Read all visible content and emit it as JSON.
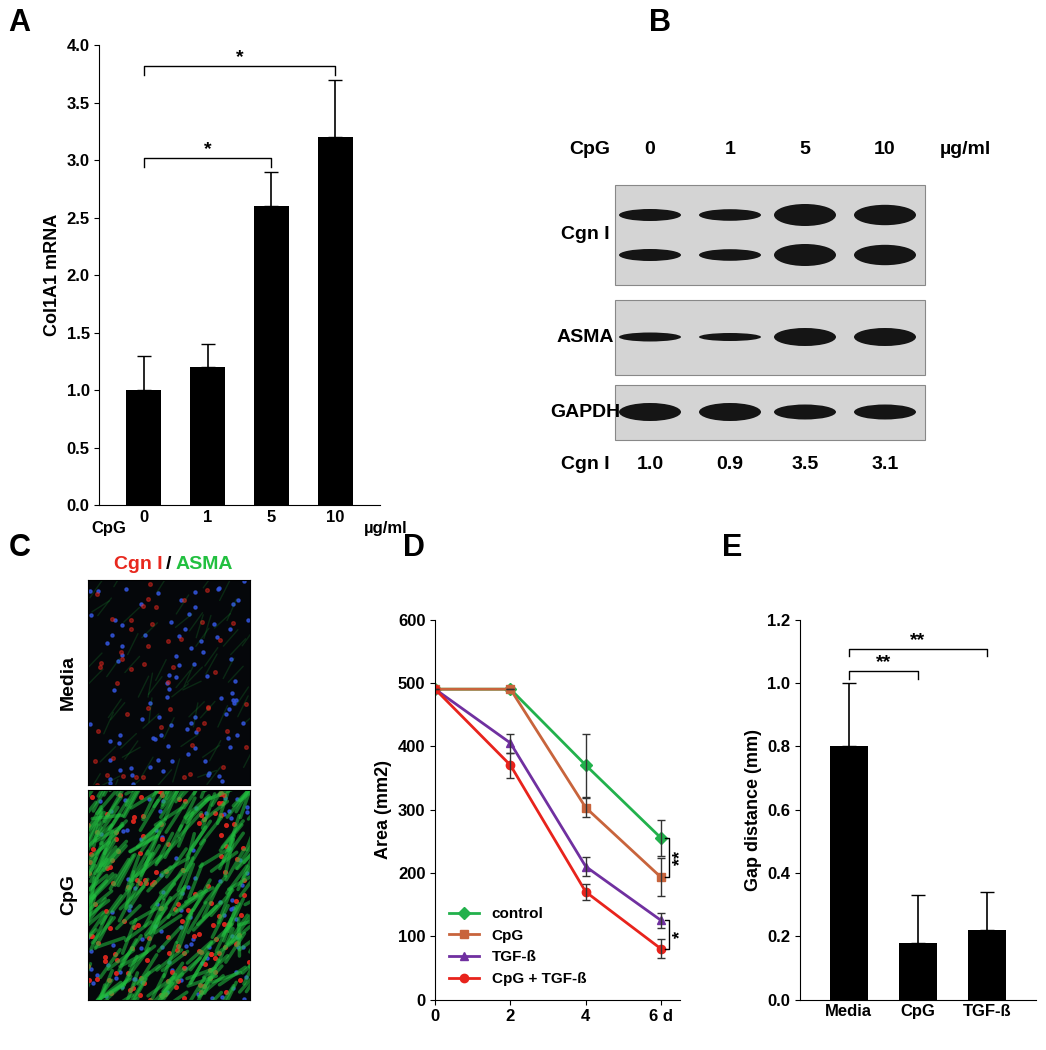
{
  "panel_labels": [
    "A",
    "B",
    "C",
    "D",
    "E"
  ],
  "chart_data": [
    {
      "type": "bar",
      "categories": [
        "0",
        "1",
        "5",
        "10"
      ],
      "values": [
        1.0,
        1.2,
        2.6,
        3.2
      ],
      "errors": [
        0.3,
        0.2,
        0.3,
        0.5
      ],
      "color": "#000000",
      "y_label": "Col1A1 mRNA",
      "x_prefix": "CpG",
      "x_unit": "µg/ml",
      "ylim": [
        0.0,
        4.0
      ],
      "yticks": [
        0.0,
        0.5,
        1.0,
        1.5,
        2.0,
        2.5,
        3.0,
        3.5,
        4.0
      ],
      "annotations": [
        {
          "text": "*",
          "between": [
            "0",
            "5"
          ]
        },
        {
          "text": "*",
          "between": [
            "0",
            "10"
          ]
        }
      ]
    },
    {
      "type": "line",
      "x": [
        0,
        2,
        4,
        6
      ],
      "xlim": [
        0,
        6.5
      ],
      "xticks": [
        0,
        2,
        4,
        {
          "value": 6,
          "label": "6 d"
        }
      ],
      "ylim": [
        0,
        600
      ],
      "yticks": [
        0,
        100,
        200,
        300,
        400,
        500,
        600
      ],
      "y_label": "Area (mm2)",
      "legend": "lower left",
      "series": [
        {
          "name": "control",
          "color": "#22b14c",
          "marker": "diamond",
          "values": [
            490,
            490,
            370,
            255
          ],
          "errors": [
            0,
            0,
            50,
            28
          ]
        },
        {
          "name": "CpG",
          "color": "#c8643c",
          "marker": "square",
          "values": [
            490,
            490,
            303,
            193
          ],
          "errors": [
            0,
            0,
            15,
            30
          ]
        },
        {
          "name": "TGF-ß",
          "color": "#7030a0",
          "marker": "triangle",
          "values": [
            490,
            405,
            210,
            125
          ],
          "errors": [
            0,
            15,
            15,
            12
          ]
        },
        {
          "name": "CpG + TGF-ß",
          "color": "#e8231c",
          "marker": "circle",
          "values": [
            490,
            370,
            170,
            80
          ],
          "errors": [
            0,
            20,
            12,
            15
          ]
        }
      ],
      "annotations": [
        {
          "text": "**",
          "x": 6,
          "between": [
            "control",
            "CpG"
          ]
        },
        {
          "text": "*",
          "x": 6,
          "between": [
            "TGF-ß",
            "CpG + TGF-ß"
          ]
        }
      ]
    },
    {
      "type": "bar",
      "categories": [
        "Media",
        "CpG",
        "TGF-ß"
      ],
      "values": [
        0.8,
        0.18,
        0.22
      ],
      "errors": [
        0.2,
        0.15,
        0.12
      ],
      "color": "#000000",
      "y_label": "Gap distance (mm)",
      "ylim": [
        0.0,
        1.2
      ],
      "yticks": [
        0.0,
        0.2,
        0.4,
        0.6,
        0.8,
        1.0,
        1.2
      ],
      "annotations": [
        {
          "text": "**",
          "between": [
            "Media",
            "CpG"
          ]
        },
        {
          "text": "**",
          "between": [
            "Media",
            "TGF-ß"
          ]
        }
      ]
    }
  ],
  "blot": {
    "header": "CpG",
    "lanes": [
      "0",
      "1",
      "5",
      "10"
    ],
    "unit": "µg/ml",
    "rows": [
      "Cgn I",
      "ASMA",
      "GAPDH"
    ],
    "quantification": {
      "label": "Cgn I",
      "values": [
        1.0,
        0.9,
        3.5,
        3.1
      ]
    }
  },
  "micrographs": {
    "stains": [
      {
        "name": "Cgn I",
        "color": "#e8281e"
      },
      {
        "name": "ASMA",
        "color": "#22c040"
      }
    ],
    "separator": "/",
    "conditions": [
      "Media",
      "CpG"
    ]
  }
}
